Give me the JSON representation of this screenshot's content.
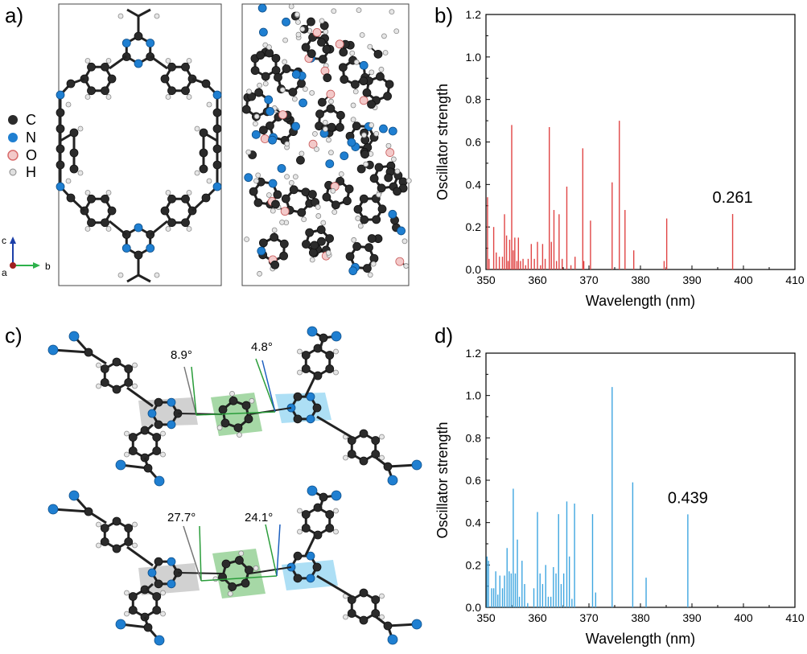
{
  "panels": {
    "a": "a)",
    "b": "b)",
    "c": "c)",
    "d": "d)"
  },
  "legend": {
    "items": [
      {
        "label": "C",
        "color": "#2b2b2b"
      },
      {
        "label": "N",
        "color": "#1f7fd1"
      },
      {
        "label": "O",
        "color": "#e8a1a1"
      },
      {
        "label": "H",
        "color": "#d8d8d8"
      }
    ]
  },
  "axes_triad": {
    "c": "c",
    "a": "a",
    "b": "b"
  },
  "angles": {
    "top_left": "8.9°",
    "top_right": "4.8°",
    "bottom_left": "27.7°",
    "bottom_right": "24.1°"
  },
  "chart_data": [
    {
      "type": "bar",
      "color": "#e04545",
      "xlabel": "Wavelength (nm)",
      "ylabel": "Oscillator strength",
      "xlim": [
        350,
        410
      ],
      "ylim": [
        0,
        1.2
      ],
      "xticks": [
        "350",
        "360",
        "370",
        "380",
        "390",
        "400",
        "410"
      ],
      "yticks": [
        "0.0",
        "0.2",
        "0.4",
        "0.6",
        "0.8",
        "1.0",
        "1.2"
      ],
      "annotation": "0.261",
      "x": [
        350.3,
        350.6,
        351.5,
        352.0,
        352.6,
        353.2,
        353.6,
        354.0,
        354.3,
        354.6,
        355.0,
        355.3,
        355.6,
        356.0,
        356.3,
        356.7,
        357.2,
        357.7,
        358.2,
        358.8,
        359.4,
        360.0,
        360.6,
        361.0,
        361.5,
        362.3,
        362.7,
        363.2,
        363.7,
        364.2,
        364.8,
        365.7,
        366.5,
        367.3,
        368.8,
        369.0,
        370.3,
        374.5,
        375.9,
        377.0,
        378.7,
        384.6,
        385.1,
        397.9
      ],
      "y": [
        0.34,
        0.05,
        0.2,
        0.08,
        0.06,
        0.06,
        0.26,
        0.16,
        0.04,
        0.14,
        0.68,
        0.09,
        0.15,
        0.04,
        0.15,
        0.04,
        0.05,
        0.02,
        0.05,
        0.12,
        0.05,
        0.13,
        0.02,
        0.12,
        0.05,
        0.67,
        0.13,
        0.28,
        0.04,
        0.26,
        0.05,
        0.39,
        0.02,
        0.06,
        0.57,
        0.04,
        0.23,
        0.41,
        0.7,
        0.28,
        0.09,
        0.04,
        0.24,
        0.261
      ]
    },
    {
      "type": "bar",
      "color": "#3fa6e0",
      "xlabel": "Wavelength (nm)",
      "ylabel": "Oscillator strength",
      "xlim": [
        350,
        410
      ],
      "ylim": [
        0,
        1.2
      ],
      "xticks": [
        "350",
        "360",
        "370",
        "380",
        "390",
        "400",
        "410"
      ],
      "yticks": [
        "0.0",
        "0.2",
        "0.4",
        "0.6",
        "0.8",
        "1.0",
        "1.2"
      ],
      "annotation": "0.439",
      "x": [
        350.2,
        350.5,
        351.1,
        351.5,
        351.9,
        352.3,
        352.7,
        353.2,
        353.6,
        354.1,
        354.5,
        354.9,
        355.3,
        355.7,
        356.1,
        356.5,
        357.0,
        357.5,
        358.1,
        359.3,
        360.0,
        360.5,
        361.0,
        361.6,
        362.1,
        362.6,
        363.1,
        363.6,
        364.1,
        364.6,
        365.1,
        365.7,
        366.2,
        366.7,
        367.2,
        370.7,
        371.3,
        374.5,
        378.5,
        381.1,
        389.2
      ],
      "y": [
        0.24,
        0.22,
        0.09,
        0.09,
        0.17,
        0.06,
        0.15,
        0.09,
        0.15,
        0.28,
        0.17,
        0.16,
        0.56,
        0.16,
        0.32,
        0.05,
        0.22,
        0.11,
        0.02,
        0.09,
        0.45,
        0.16,
        0.11,
        0.2,
        0.05,
        0.05,
        0.19,
        0.16,
        0.44,
        0.11,
        0.16,
        0.5,
        0.24,
        0.04,
        0.49,
        0.44,
        0.07,
        1.04,
        0.59,
        0.14,
        0.439
      ]
    }
  ]
}
